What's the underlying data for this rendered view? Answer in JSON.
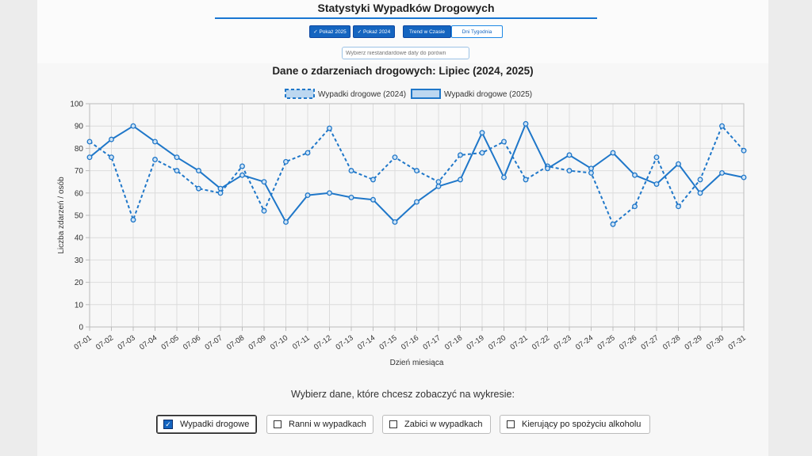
{
  "app": {
    "title": "Statystyki Wypadków Drogowych"
  },
  "toggles": {
    "show_2025": "✓ Pokaż 2025",
    "show_2024": "✓ Pokaż 2024",
    "trend": "Trend w Czasie",
    "weekdays": "Dni Tygodnia"
  },
  "date_input": {
    "placeholder": "Wybierz niestandardowe daty do porówn"
  },
  "chart_title": "Dane o zdarzeniach drogowych: Lipiec (2024, 2025)",
  "selector": {
    "prompt": "Wybierz dane, które chcesz zobaczyć na wykresie:",
    "options": [
      "Wypadki drogowe",
      "Ranni w wypadkach",
      "Zabici w wypadkach",
      "Kierujący po spożyciu alkoholu"
    ],
    "checked_mark": "✓"
  },
  "colors": {
    "series": "#1f77c9",
    "accent": "#1565c0"
  },
  "chart_data": {
    "type": "line",
    "xlabel": "Dzień miesiąca",
    "ylabel": "Liczba zdarzeń / osób",
    "ylim": [
      0,
      100
    ],
    "yticks": [
      "0",
      "10",
      "20",
      "30",
      "40",
      "50",
      "60",
      "70",
      "80",
      "90",
      "100"
    ],
    "grid": true,
    "legend_position": "top-center",
    "categories": [
      "07-01",
      "07-02",
      "07-03",
      "07-04",
      "07-05",
      "07-06",
      "07-07",
      "07-08",
      "07-09",
      "07-10",
      "07-11",
      "07-12",
      "07-13",
      "07-14",
      "07-15",
      "07-16",
      "07-17",
      "07-18",
      "07-19",
      "07-20",
      "07-21",
      "07-22",
      "07-23",
      "07-24",
      "07-25",
      "07-26",
      "07-27",
      "07-28",
      "07-29",
      "07-30",
      "07-31"
    ],
    "series": [
      {
        "name": "Wypadki drogowe (2024)",
        "style": "dashed",
        "values": [
          83,
          76,
          48,
          75,
          70,
          62,
          60,
          72,
          52,
          74,
          78,
          89,
          70,
          66,
          76,
          70,
          65,
          77,
          78,
          83,
          66,
          72,
          70,
          69,
          46,
          54,
          76,
          54,
          66,
          90,
          79
        ]
      },
      {
        "name": "Wypadki drogowe (2025)",
        "style": "solid",
        "values": [
          76,
          84,
          90,
          83,
          76,
          70,
          62,
          68,
          65,
          47,
          59,
          60,
          58,
          57,
          47,
          56,
          63,
          66,
          87,
          67,
          91,
          71,
          77,
          71,
          78,
          68,
          64,
          73,
          60,
          69,
          67
        ]
      }
    ]
  }
}
